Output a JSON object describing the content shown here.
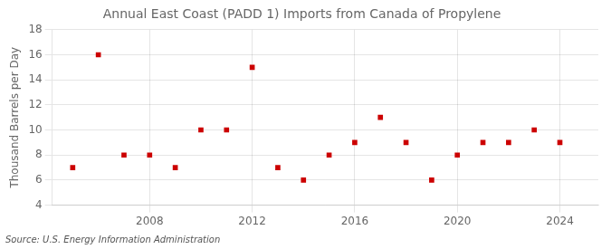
{
  "chart_data": {
    "type": "scatter",
    "title": "Annual East Coast (PADD 1) Imports from Canada of Propylene",
    "ylabel": "Thousand Barrels per Day",
    "source": "Source: U.S. Energy Information Administration",
    "x": [
      2005,
      2006,
      2007,
      2008,
      2009,
      2010,
      2011,
      2012,
      2013,
      2014,
      2015,
      2016,
      2017,
      2018,
      2019,
      2020,
      2021,
      2022,
      2023,
      2024
    ],
    "values": [
      7,
      16,
      8,
      8,
      7,
      10,
      10,
      15,
      7,
      6,
      8,
      9,
      11,
      9,
      6,
      8,
      9,
      9,
      10,
      9
    ],
    "color": "#cc0000",
    "marker": "square",
    "xlim": [
      2004.2,
      2025.5
    ],
    "ylim": [
      4,
      18
    ],
    "xticks": [
      2008,
      2012,
      2016,
      2020,
      2024
    ],
    "yticks": [
      4,
      6,
      8,
      10,
      12,
      14,
      16,
      18
    ],
    "grid": true
  }
}
